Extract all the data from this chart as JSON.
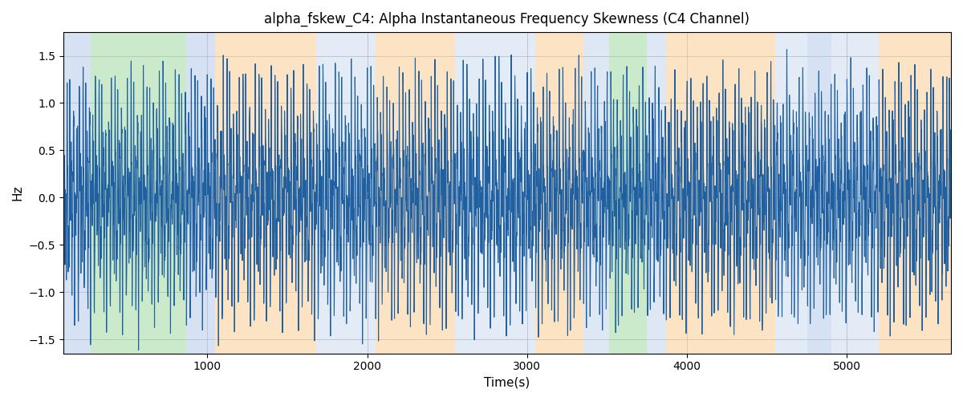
{
  "title": "alpha_fskew_C4: Alpha Instantaneous Frequency Skewness (C4 Channel)",
  "xlabel": "Time(s)",
  "ylabel": "Hz",
  "ylim": [
    -1.65,
    1.75
  ],
  "xlim": [
    100,
    5650
  ],
  "line_color": "#2060a0",
  "line_width": 0.8,
  "bg_color": "#ffffff",
  "grid_color": "#aaaaaa",
  "bands": [
    {
      "xmin": 100,
      "xmax": 270,
      "color": "#aec6e8",
      "alpha": 0.5
    },
    {
      "xmin": 270,
      "xmax": 870,
      "color": "#98d698",
      "alpha": 0.5
    },
    {
      "xmin": 870,
      "xmax": 1050,
      "color": "#aec6e8",
      "alpha": 0.5
    },
    {
      "xmin": 1050,
      "xmax": 1680,
      "color": "#f9c98a",
      "alpha": 0.5
    },
    {
      "xmin": 1680,
      "xmax": 2050,
      "color": "#aec6e8",
      "alpha": 0.35
    },
    {
      "xmin": 2050,
      "xmax": 2550,
      "color": "#f9c98a",
      "alpha": 0.5
    },
    {
      "xmin": 2550,
      "xmax": 3050,
      "color": "#aec6e8",
      "alpha": 0.35
    },
    {
      "xmin": 3050,
      "xmax": 3350,
      "color": "#f9c98a",
      "alpha": 0.5
    },
    {
      "xmin": 3350,
      "xmax": 3510,
      "color": "#aec6e8",
      "alpha": 0.4
    },
    {
      "xmin": 3510,
      "xmax": 3750,
      "color": "#98d698",
      "alpha": 0.5
    },
    {
      "xmin": 3750,
      "xmax": 3870,
      "color": "#aec6e8",
      "alpha": 0.4
    },
    {
      "xmin": 3870,
      "xmax": 4550,
      "color": "#f9c98a",
      "alpha": 0.5
    },
    {
      "xmin": 4550,
      "xmax": 4750,
      "color": "#aec6e8",
      "alpha": 0.35
    },
    {
      "xmin": 4750,
      "xmax": 4900,
      "color": "#aec6e8",
      "alpha": 0.5
    },
    {
      "xmin": 4900,
      "xmax": 5200,
      "color": "#aec6e8",
      "alpha": 0.35
    },
    {
      "xmin": 5200,
      "xmax": 5650,
      "color": "#f9c98a",
      "alpha": 0.5
    }
  ],
  "seed": 42,
  "n_points": 5550
}
